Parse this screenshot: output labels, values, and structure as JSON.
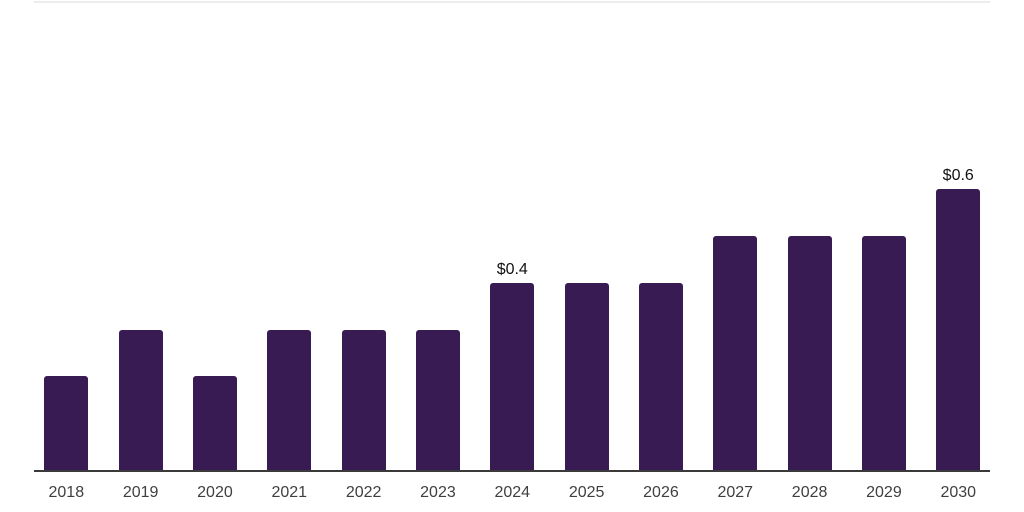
{
  "page": {
    "background": "#ffffff"
  },
  "chart_data": {
    "type": "bar",
    "title": "",
    "xlabel": "",
    "ylabel": "",
    "categories": [
      "2018",
      "2019",
      "2020",
      "2021",
      "2022",
      "2023",
      "2024",
      "2025",
      "2026",
      "2027",
      "2028",
      "2029",
      "2030"
    ],
    "values": [
      0.2,
      0.3,
      0.2,
      0.3,
      0.3,
      0.3,
      0.4,
      0.4,
      0.4,
      0.5,
      0.5,
      0.5,
      0.6
    ],
    "data_labels": [
      "",
      "",
      "",
      "",
      "",
      "",
      "$0.4",
      "",
      "",
      "",
      "",
      "",
      "$0.6"
    ],
    "ylim": [
      0,
      1
    ],
    "grid": "single top gridline only, no y-axis labels",
    "legend": "none",
    "colors": {
      "bar": "#371B52",
      "axis_line": "#3A3A3A",
      "gridline": "#ECECEC",
      "tick_label": "#3F3F3F",
      "data_label": "#111111"
    }
  }
}
